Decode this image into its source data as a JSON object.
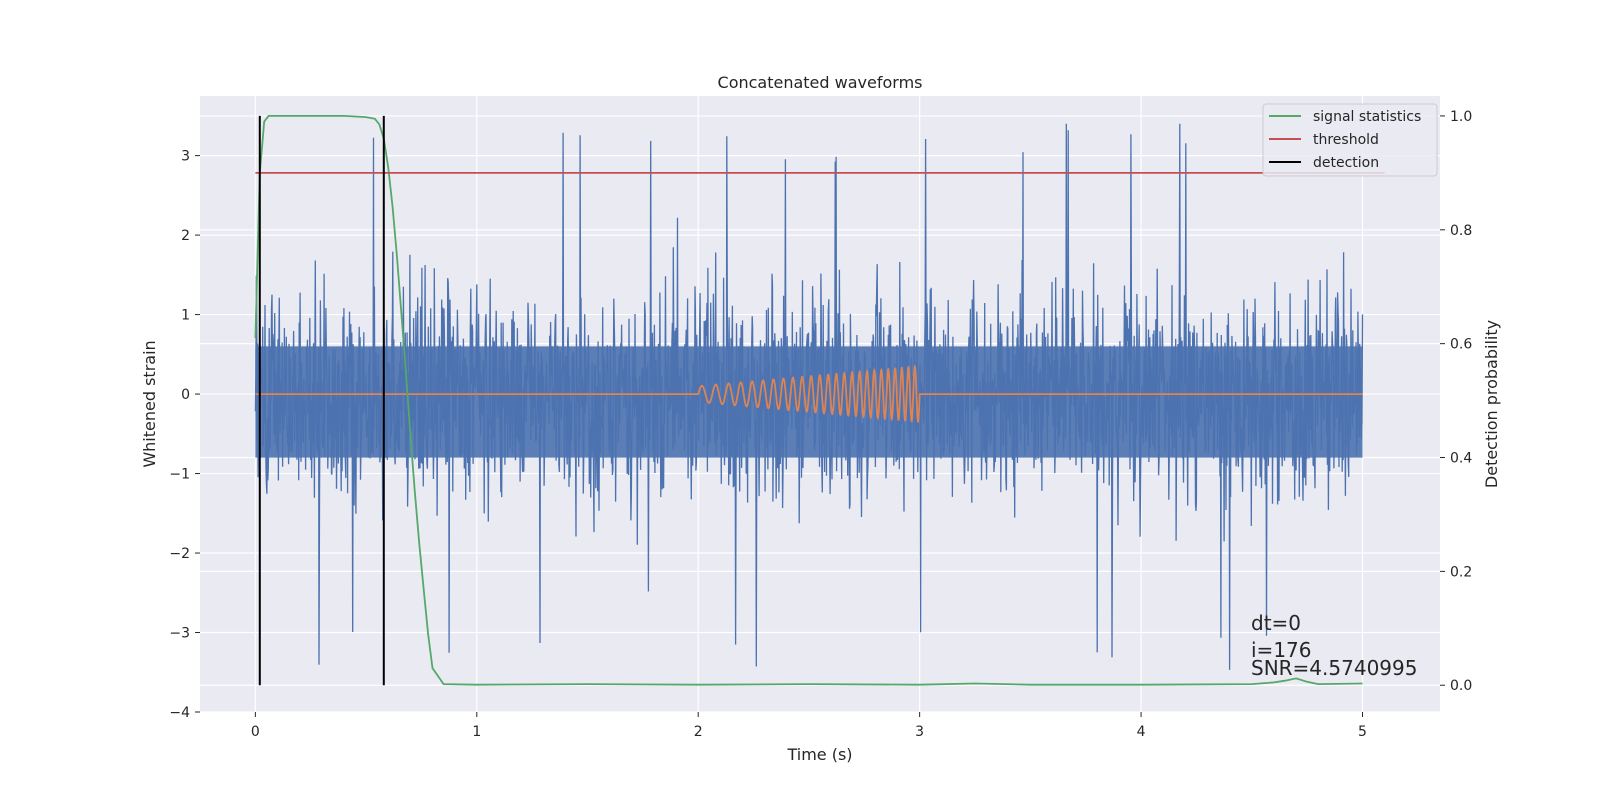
{
  "chart_data": {
    "type": "line",
    "title": "Concatenated waveforms",
    "xlabel": "Time (s)",
    "ylabel_left": "Whitened strain",
    "ylabel_right": "Detection probability",
    "xlim": [
      -0.25,
      5.35
    ],
    "ylim_left": [
      -4.0,
      3.75
    ],
    "ylim_right": [
      -0.047,
      1.035
    ],
    "x_ticks": [
      0,
      1,
      2,
      3,
      4,
      5
    ],
    "y_ticks_left": [
      -4,
      -3,
      -2,
      -1,
      0,
      1,
      2,
      3
    ],
    "y_ticks_right": [
      0.0,
      0.2,
      0.4,
      0.6,
      0.8,
      1.0
    ],
    "x_tick_labels": [
      "0",
      "1",
      "2",
      "3",
      "4",
      "5"
    ],
    "y_tick_labels_left": [
      "−4",
      "−3",
      "−2",
      "−1",
      "0",
      "1",
      "2",
      "3"
    ],
    "y_tick_labels_right": [
      "0.0",
      "0.2",
      "0.4",
      "0.6",
      "0.8",
      "1.0"
    ],
    "grid": true,
    "legend_position": "top-right",
    "legend": [
      {
        "label": "signal statistics",
        "color": "#55a868"
      },
      {
        "label": "threshold",
        "color": "#c44e52"
      },
      {
        "label": "detection",
        "color": "#000000"
      }
    ],
    "series": [
      {
        "kind": "noise",
        "axis": "left",
        "color": "#4c72b0",
        "x_range": [
          0,
          5
        ],
        "core_band": [
          -0.8,
          0.6
        ],
        "typical_peak_range": [
          -2.3,
          2.3
        ],
        "extreme_range": [
          -3.6,
          3.4
        ]
      },
      {
        "kind": "chirp",
        "axis": "left",
        "color": "#dd8452",
        "x_range": [
          0,
          5
        ],
        "chirp_start": 2.0,
        "chirp_end": 3.0,
        "amplitude_start": 0.1,
        "amplitude_end": 0.35,
        "frequency_start_hz": 15,
        "frequency_end_hz": 35
      },
      {
        "name": "signal statistics",
        "axis": "right",
        "color": "#55a868",
        "x": [
          0.0,
          0.02,
          0.04,
          0.06,
          0.1,
          0.2,
          0.3,
          0.4,
          0.5,
          0.54,
          0.56,
          0.58,
          0.6,
          0.62,
          0.64,
          0.66,
          0.68,
          0.7,
          0.72,
          0.74,
          0.76,
          0.78,
          0.8,
          0.85,
          1.0,
          1.5,
          2.0,
          2.5,
          3.0,
          3.25,
          3.5,
          4.0,
          4.5,
          4.6,
          4.65,
          4.7,
          4.75,
          4.8,
          5.0
        ],
        "y": [
          0.61,
          0.9,
          0.99,
          1.0,
          1.0,
          1.0,
          1.0,
          1.0,
          0.998,
          0.995,
          0.985,
          0.96,
          0.91,
          0.84,
          0.75,
          0.65,
          0.55,
          0.44,
          0.34,
          0.25,
          0.17,
          0.09,
          0.03,
          0.002,
          0.001,
          0.002,
          0.001,
          0.002,
          0.001,
          0.003,
          0.001,
          0.001,
          0.002,
          0.005,
          0.008,
          0.012,
          0.006,
          0.002,
          0.003
        ]
      },
      {
        "name": "threshold",
        "axis": "right",
        "color": "#c44e52",
        "x": [
          0.0,
          5.1
        ],
        "y": [
          0.9,
          0.9
        ]
      },
      {
        "name": "detection",
        "axis": "right",
        "color": "#000000",
        "vlines_x": [
          0.02,
          0.58
        ],
        "y_range": [
          0.0,
          1.0
        ]
      }
    ],
    "annotations": [
      "dt=0",
      "i=176",
      "SNR=4.5740995"
    ]
  }
}
